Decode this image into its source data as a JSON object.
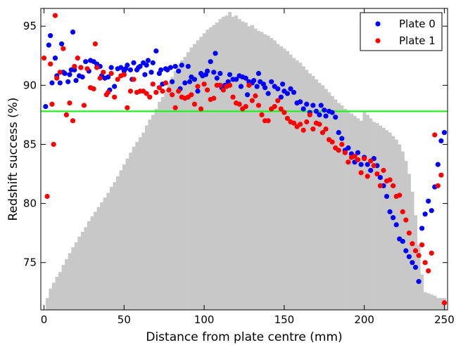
{
  "chart_data": {
    "type": "scatter",
    "xlabel": "Distance from plate centre (mm)",
    "ylabel": "Redshift success (%)",
    "xlim": [
      -2,
      252
    ],
    "ylim": [
      71,
      96.5
    ],
    "xticks": [
      0,
      50,
      100,
      150,
      200,
      250
    ],
    "yticks": [
      75,
      80,
      85,
      90,
      95
    ],
    "grid": false,
    "legend_position": "top-right",
    "reference_line": {
      "y": 87.8,
      "color": "#00ff00"
    },
    "histogram": {
      "color": "#c8c8c8",
      "description_values_in_y_units": true,
      "x": [
        2,
        4,
        6,
        8,
        10,
        12,
        14,
        16,
        18,
        20,
        22,
        24,
        26,
        28,
        30,
        32,
        34,
        36,
        38,
        40,
        42,
        44,
        46,
        48,
        50,
        52,
        54,
        56,
        58,
        60,
        62,
        64,
        66,
        68,
        70,
        72,
        74,
        76,
        78,
        80,
        82,
        84,
        86,
        88,
        90,
        92,
        94,
        96,
        98,
        100,
        102,
        104,
        106,
        108,
        110,
        112,
        114,
        116,
        118,
        120,
        122,
        124,
        126,
        128,
        130,
        132,
        134,
        136,
        138,
        140,
        142,
        144,
        146,
        148,
        150,
        152,
        154,
        156,
        158,
        160,
        162,
        164,
        166,
        168,
        170,
        172,
        174,
        176,
        178,
        180,
        182,
        184,
        186,
        188,
        190,
        192,
        194,
        196,
        198,
        200,
        202,
        204,
        206,
        208,
        210,
        212,
        214,
        216,
        218,
        220,
        222,
        224,
        226,
        228,
        230,
        232,
        234,
        236,
        238,
        240,
        242,
        244,
        246,
        248,
        250
      ],
      "heights": [
        72.0,
        72.8,
        73.3,
        73.8,
        74.2,
        74.8,
        75.3,
        75.8,
        76.3,
        76.7,
        77.2,
        77.6,
        78.0,
        78.5,
        78.9,
        79.3,
        79.7,
        80.1,
        80.5,
        80.9,
        81.4,
        81.8,
        82.3,
        82.8,
        83.3,
        83.8,
        84.3,
        84.8,
        85.2,
        85.6,
        86.0,
        86.6,
        87.1,
        87.5,
        88.0,
        88.6,
        89.0,
        89.6,
        90.2,
        90.7,
        91.2,
        91.7,
        92.1,
        92.4,
        92.8,
        93.2,
        93.5,
        93.8,
        94.1,
        94.4,
        94.7,
        94.9,
        95.1,
        95.3,
        95.6,
        95.8,
        95.9,
        96.2,
        95.8,
        95.9,
        95.6,
        95.4,
        95.3,
        95.0,
        95.1,
        94.8,
        94.6,
        94.5,
        94.3,
        94.2,
        94.0,
        93.8,
        93.5,
        93.3,
        93.1,
        92.9,
        92.6,
        92.3,
        92.1,
        91.9,
        91.6,
        91.3,
        91.0,
        90.8,
        90.5,
        90.2,
        90.0,
        89.7,
        89.4,
        89.1,
        88.8,
        88.5,
        88.3,
        88.0,
        87.8,
        87.6,
        87.4,
        87.2,
        87.0,
        87.8,
        87.5,
        87.2,
        86.9,
        86.8,
        86.6,
        86.4,
        86.2,
        86.0,
        85.7,
        85.4,
        85.0,
        84.4,
        83.6,
        82.5,
        81.0,
        79.0,
        76.5,
        74.0,
        72.5,
        72.4,
        72.3,
        72.2,
        72.0,
        72.0,
        72.0
      ]
    },
    "series": [
      {
        "name": "Plate 0",
        "color": "#0000ff",
        "x": [
          1,
          3,
          4,
          5,
          7,
          8,
          10,
          11,
          12,
          13,
          15,
          16,
          17,
          18,
          19,
          20,
          22,
          23,
          24,
          26,
          28,
          29,
          31,
          33,
          35,
          36,
          38,
          40,
          41,
          42,
          44,
          46,
          48,
          50,
          51,
          52,
          54,
          55,
          56,
          58,
          59,
          60,
          62,
          63,
          64,
          65,
          67,
          68,
          70,
          72,
          73,
          74,
          76,
          77,
          79,
          80,
          82,
          84,
          85,
          86,
          88,
          90,
          91,
          92,
          94,
          96,
          98,
          99,
          101,
          102,
          104,
          106,
          107,
          108,
          110,
          111,
          113,
          115,
          116,
          118,
          120,
          122,
          123,
          124,
          126,
          127,
          128,
          130,
          131,
          133,
          134,
          135,
          137,
          138,
          140,
          142,
          144,
          146,
          148,
          149,
          150,
          152,
          154,
          156,
          158,
          160,
          162,
          164,
          166,
          168,
          170,
          172,
          173,
          175,
          176,
          178,
          180,
          182,
          184,
          186,
          188,
          190,
          192,
          194,
          196,
          198,
          200,
          202,
          204,
          206,
          208,
          210,
          212,
          214,
          216,
          218,
          220,
          222,
          224,
          226,
          228,
          230,
          232,
          234,
          236,
          238,
          240,
          242,
          244,
          246,
          248,
          250
        ],
        "y": [
          88.2,
          93.4,
          94.2,
          90.2,
          92.3,
          90.8,
          90.2,
          93.5,
          91.1,
          91.0,
          90.3,
          90.9,
          91.3,
          94.5,
          91.3,
          90.4,
          90.8,
          91.5,
          90.7,
          92.0,
          91.2,
          92.1,
          92.0,
          91.8,
          91.6,
          90.8,
          90.6,
          90.7,
          89.6,
          91.5,
          89.9,
          91.4,
          91.5,
          91.2,
          91.4,
          91.7,
          91.3,
          90.5,
          91.9,
          91.3,
          91.5,
          91.6,
          91.9,
          90.9,
          91.7,
          92.1,
          91.1,
          91.9,
          92.9,
          91.0,
          91.3,
          90.1,
          91.4,
          91.3,
          91.5,
          90.3,
          91.6,
          91.2,
          89.7,
          91.7,
          90.2,
          91.6,
          90.3,
          90.7,
          90.5,
          89.5,
          91.0,
          90.8,
          90.9,
          91.2,
          92.0,
          91.1,
          92.7,
          90.6,
          91.0,
          89.8,
          90.0,
          90.3,
          90.9,
          90.5,
          90.5,
          90.8,
          89.9,
          90.7,
          90.6,
          89.2,
          90.3,
          90.2,
          90.4,
          89.9,
          91.0,
          90.3,
          90.1,
          89.8,
          89.3,
          90.3,
          89.9,
          89.7,
          89.0,
          90.1,
          89.5,
          89.3,
          89.7,
          89.4,
          88.5,
          88.6,
          88.0,
          88.4,
          87.7,
          88.3,
          87.8,
          87.5,
          88.3,
          87.9,
          87.4,
          87.8,
          87.7,
          87.3,
          86.0,
          85.5,
          84.5,
          84.7,
          84.2,
          83.5,
          84.3,
          83.3,
          83.9,
          83.3,
          82.8,
          83.8,
          83.2,
          82.2,
          81.5,
          80.6,
          79.3,
          78.8,
          78.2,
          77.0,
          76.8,
          76.0,
          75.5,
          75.0,
          74.6,
          73.4,
          77.9,
          79.1,
          80.2,
          79.4,
          81.4,
          83.3,
          85.3,
          86.0
        ]
      },
      {
        "name": "Plate 1",
        "color": "#ff0000",
        "x": [
          0,
          2,
          4,
          5,
          6,
          7,
          8,
          10,
          12,
          14,
          16,
          18,
          19,
          21,
          23,
          25,
          27,
          29,
          31,
          32,
          33,
          35,
          37,
          39,
          40,
          42,
          44,
          46,
          48,
          50,
          52,
          54,
          56,
          58,
          60,
          62,
          64,
          66,
          68,
          70,
          72,
          74,
          76,
          78,
          80,
          82,
          84,
          86,
          88,
          90,
          92,
          94,
          96,
          98,
          100,
          102,
          104,
          106,
          108,
          110,
          112,
          114,
          116,
          118,
          120,
          122,
          124,
          126,
          128,
          130,
          132,
          134,
          136,
          138,
          140,
          142,
          144,
          146,
          148,
          150,
          152,
          154,
          156,
          158,
          160,
          162,
          164,
          166,
          168,
          170,
          172,
          174,
          176,
          178,
          180,
          182,
          184,
          186,
          188,
          190,
          192,
          194,
          196,
          198,
          200,
          202,
          204,
          206,
          208,
          210,
          212,
          214,
          216,
          218,
          220,
          222,
          224,
          226,
          228,
          230,
          232,
          234,
          236,
          238,
          240,
          242,
          244,
          246,
          248,
          250
        ],
        "y": [
          92.3,
          80.6,
          91.8,
          88.4,
          85.0,
          95.9,
          90.6,
          91.1,
          93.1,
          87.5,
          88.5,
          87.0,
          91.6,
          92.3,
          91.5,
          88.3,
          91.4,
          89.8,
          89.7,
          93.5,
          91.5,
          90.6,
          91.1,
          89.2,
          89.4,
          91.0,
          89.0,
          90.5,
          90.8,
          90.9,
          88.1,
          89.5,
          90.5,
          89.4,
          89.5,
          89.5,
          89.3,
          89.0,
          90.1,
          89.4,
          89.8,
          89.5,
          90.2,
          89.6,
          89.2,
          88.1,
          89.5,
          89.0,
          88.9,
          89.0,
          89.2,
          88.4,
          89.9,
          88.0,
          90.1,
          89.6,
          88.8,
          88.9,
          90.0,
          90.0,
          89.6,
          89.9,
          90.0,
          89.0,
          88.5,
          88.4,
          88.0,
          88.2,
          90.0,
          88.7,
          89.1,
          88.3,
          87.5,
          87.0,
          87.0,
          88.0,
          88.2,
          88.7,
          88.0,
          87.7,
          87.2,
          86.9,
          86.8,
          86.5,
          86.7,
          86.2,
          86.9,
          87.5,
          86.3,
          86.8,
          86.7,
          86.0,
          86.3,
          85.4,
          85.2,
          84.7,
          84.5,
          85.0,
          84.3,
          83.5,
          83.9,
          84.0,
          83.7,
          82.6,
          83.8,
          82.3,
          83.6,
          83.2,
          82.5,
          81.5,
          82.8,
          81.9,
          82.0,
          81.5,
          80.6,
          80.7,
          79.3,
          78.6,
          77.5,
          76.6,
          76.0,
          75.6,
          76.5,
          75.0,
          74.3,
          75.8,
          85.8,
          81.5,
          82.4,
          71.6
        ]
      }
    ]
  }
}
